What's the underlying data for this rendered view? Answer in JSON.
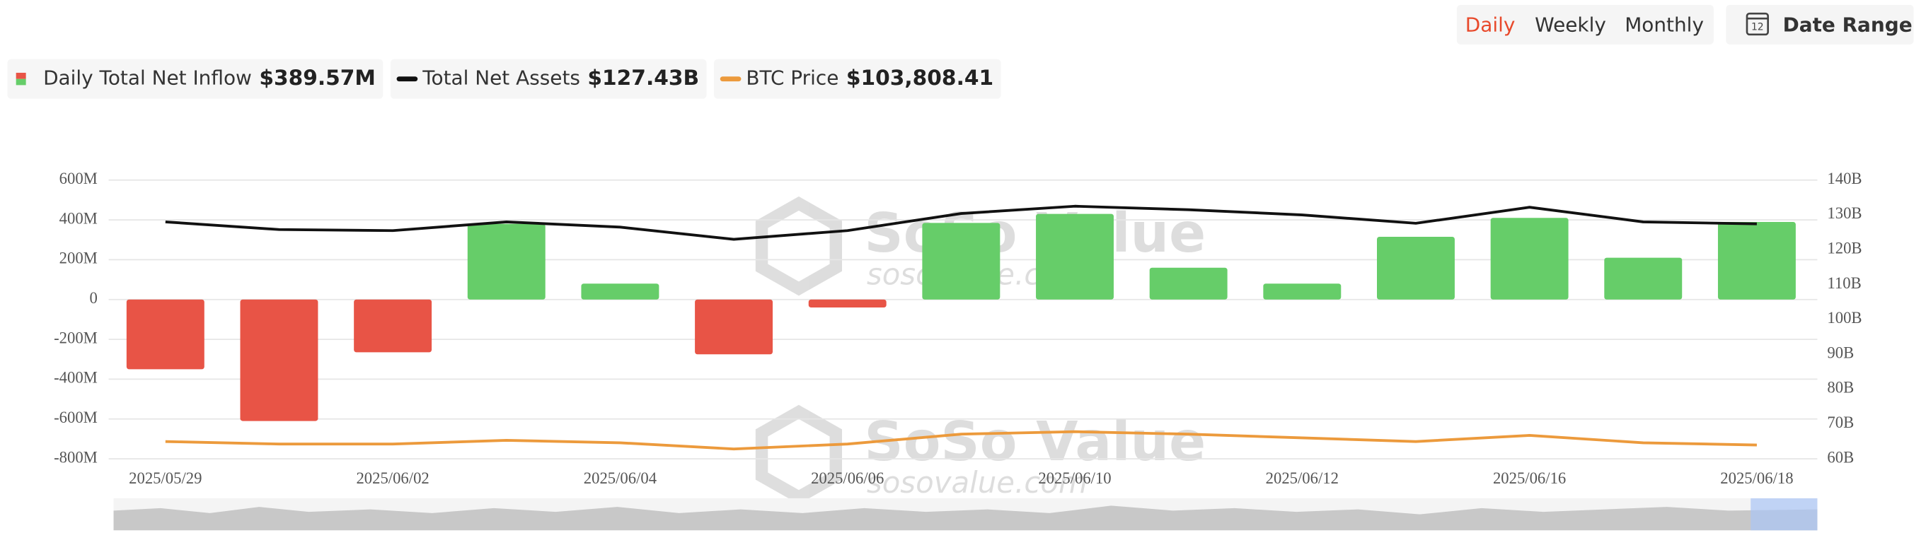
{
  "header": {
    "tabs": [
      "Daily",
      "Weekly",
      "Monthly"
    ],
    "active_tab": 0,
    "date_range": "Date Range",
    "calendar_day": "12"
  },
  "watermark": {
    "brand": "SoSo Value",
    "site": "sosovalue.com"
  },
  "chart_data": {
    "type": "bar-line",
    "categories": [
      "2025/05/29",
      null,
      "2025/06/02",
      null,
      "2025/06/04",
      null,
      "2025/06/06",
      null,
      "2025/06/10",
      null,
      "2025/06/12",
      null,
      "2025/06/16",
      null,
      "2025/06/18"
    ],
    "series": [
      {
        "name": "Daily Total Net Inflow",
        "legend_value": "$389.57M",
        "type": "bar",
        "colors": {
          "positive": "#66cd69",
          "negative": "#e85446"
        },
        "values": [
          -350,
          -610,
          -265,
          380,
          80,
          -275,
          -40,
          385,
          430,
          160,
          80,
          315,
          410,
          210,
          389.57
        ]
      },
      {
        "name": "Total Net Assets",
        "legend_value": "$127.43B",
        "type": "line",
        "axis": "y2",
        "color": "#111111",
        "values": [
          128,
          125.8,
          125.5,
          128,
          126.5,
          123,
          125.5,
          130.4,
          132.5,
          131.5,
          130,
          127.6,
          132.2,
          128,
          127.43
        ]
      },
      {
        "name": "BTC Price",
        "legend_value": "$103,808.41",
        "type": "line",
        "axis": "y3",
        "color": "#ec9a3c",
        "values": [
          105250,
          104210,
          104210,
          105770,
          104730,
          102140,
          104210,
          108350,
          109390,
          108350,
          106800,
          105250,
          107840,
          104730,
          103808.41
        ]
      }
    ],
    "ylim": [
      -800,
      600
    ],
    "yticks": [
      {
        "value": 600,
        "label": "600M"
      },
      {
        "value": 400,
        "label": "400M"
      },
      {
        "value": 200,
        "label": "200M"
      },
      0,
      {
        "value": -200,
        "label": "-200M"
      },
      {
        "value": -400,
        "label": "-400M"
      },
      {
        "value": -600,
        "label": "-600M"
      },
      {
        "value": -800,
        "label": "-800M"
      }
    ],
    "y2lim": [
      60,
      140
    ],
    "y2ticks": [
      {
        "value": 140,
        "label": "140B"
      },
      {
        "value": 130,
        "label": "130B"
      },
      {
        "value": 120,
        "label": "120B"
      },
      {
        "value": 110,
        "label": "110B"
      },
      {
        "value": 100,
        "label": "100B"
      },
      {
        "value": 90,
        "label": "90B"
      },
      {
        "value": 80,
        "label": "80B"
      },
      {
        "value": 70,
        "label": "70B"
      },
      {
        "value": 60,
        "label": "60B"
      }
    ],
    "y3lim": [
      98000,
      215000
    ],
    "grid": true
  }
}
